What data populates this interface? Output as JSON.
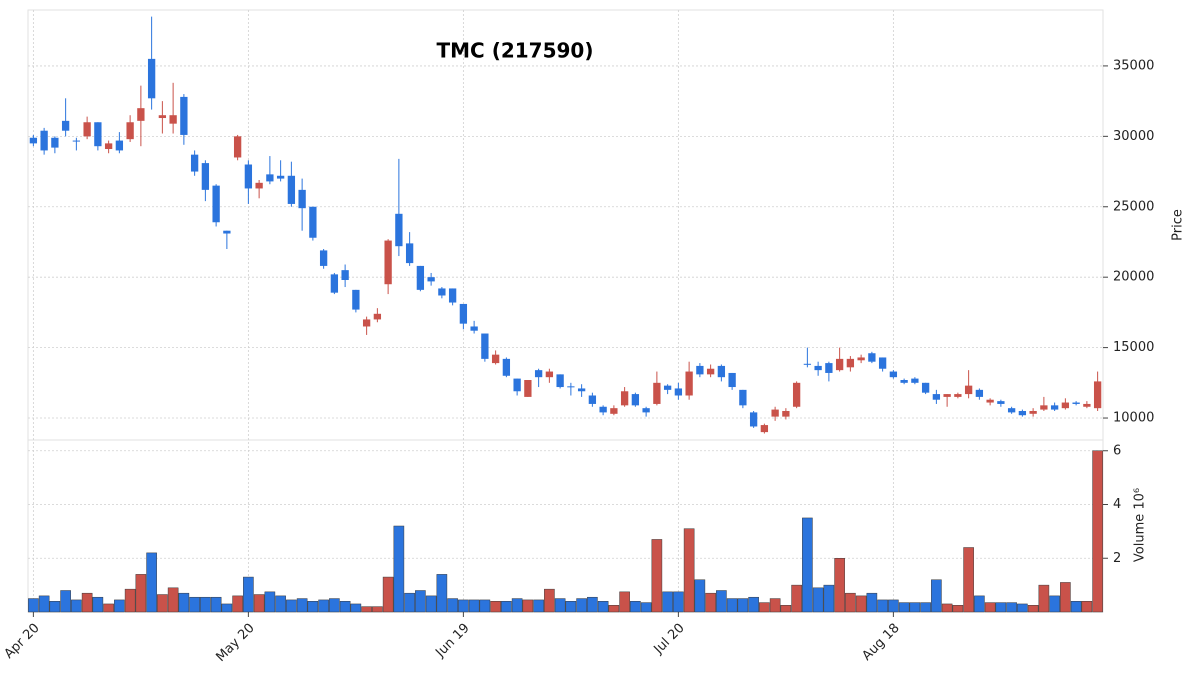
{
  "chart_data": {
    "type": "candlestick",
    "title": "TMC (217590)",
    "ylabel": "Price",
    "volume_label": "Volume  10⁶",
    "up_color": "#c9524a",
    "down_color": "#2b74dd",
    "grid": true,
    "ylim": [
      8440,
      38970
    ],
    "yticks": [
      10000,
      15000,
      20000,
      25000,
      30000,
      35000
    ],
    "volume_ylim": [
      0,
      6.4
    ],
    "volume_yticks": [
      2,
      4,
      6
    ],
    "categories": [
      "Apr 20",
      null,
      null,
      null,
      null,
      null,
      null,
      null,
      null,
      null,
      null,
      null,
      null,
      null,
      null,
      null,
      null,
      null,
      null,
      null,
      "May 20",
      null,
      null,
      null,
      null,
      null,
      null,
      null,
      null,
      null,
      null,
      null,
      null,
      null,
      null,
      null,
      null,
      null,
      null,
      null,
      "Jun 19",
      null,
      null,
      null,
      null,
      null,
      null,
      null,
      null,
      null,
      null,
      null,
      null,
      null,
      null,
      null,
      null,
      null,
      null,
      null,
      "Jul 20",
      null,
      null,
      null,
      null,
      null,
      null,
      null,
      null,
      null,
      null,
      null,
      null,
      null,
      null,
      null,
      null,
      null,
      null,
      null,
      "Aug 18",
      null,
      null,
      null,
      null,
      null,
      null,
      null,
      null,
      null,
      null,
      null,
      null,
      null,
      null,
      null,
      null,
      null,
      null,
      null
    ],
    "open": [
      29900,
      30400,
      29900,
      31100,
      29700,
      30000,
      31000,
      29100,
      29700,
      29800,
      31100,
      35500,
      31300,
      30900,
      32800,
      28700,
      28100,
      26500,
      23300,
      28500,
      28000,
      26300,
      27300,
      27200,
      27200,
      26200,
      25000,
      21900,
      20200,
      20500,
      19100,
      16500,
      17000,
      19500,
      24500,
      22400,
      20800,
      20000,
      19200,
      19200,
      18100,
      16500,
      16000,
      13900,
      14200,
      12800,
      11500,
      13400,
      12900,
      13100,
      12250,
      12100,
      11600,
      10800,
      10300,
      10900,
      11700,
      10700,
      11000,
      12300,
      12100,
      11600,
      13700,
      13100,
      13700,
      13200,
      12000,
      10400,
      9000,
      10100,
      10100,
      10800,
      13850,
      13700,
      13900,
      13400,
      13600,
      14100,
      14600,
      14300,
      13300,
      12700,
      12800,
      12500,
      11700,
      11500,
      11500,
      11700,
      12000,
      11100,
      11200,
      10700,
      10500,
      10300,
      10600,
      10900,
      10700,
      11100,
      10800,
      10700
    ],
    "high": [
      30100,
      30600,
      30000,
      32700,
      29900,
      31400,
      31000,
      29700,
      30300,
      31500,
      33600,
      38500,
      32500,
      33800,
      33000,
      29000,
      28300,
      26600,
      23300,
      30100,
      28300,
      26900,
      28600,
      28300,
      28200,
      27000,
      25000,
      22000,
      20300,
      20900,
      19100,
      17200,
      17800,
      22700,
      28400,
      23200,
      20800,
      20300,
      19300,
      19200,
      18100,
      16900,
      16000,
      14800,
      14300,
      12800,
      12700,
      13500,
      13500,
      13100,
      12500,
      12400,
      11800,
      10900,
      10900,
      12200,
      11800,
      10800,
      13300,
      12400,
      12500,
      14000,
      13900,
      13800,
      13800,
      13200,
      12000,
      10500,
      9600,
      10800,
      10700,
      12600,
      15000,
      14000,
      14000,
      15000,
      14400,
      14500,
      14700,
      14300,
      13400,
      12800,
      12900,
      12500,
      12000,
      11700,
      11800,
      13400,
      12100,
      11400,
      11300,
      10800,
      10600,
      10700,
      11500,
      11100,
      11400,
      11200,
      11200,
      13300
    ],
    "low": [
      29300,
      28700,
      28800,
      30000,
      29000,
      29800,
      29000,
      28800,
      28800,
      29600,
      29300,
      31900,
      30200,
      30200,
      29400,
      27200,
      25400,
      23600,
      22000,
      28300,
      25200,
      25600,
      26600,
      26800,
      25000,
      23300,
      22600,
      20600,
      18800,
      19300,
      17500,
      15900,
      16800,
      18800,
      21500,
      20800,
      19000,
      19400,
      18500,
      18000,
      16300,
      16000,
      14000,
      13800,
      12900,
      11600,
      11500,
      12200,
      12500,
      12100,
      11600,
      11500,
      10800,
      10200,
      10200,
      10800,
      10800,
      10100,
      10900,
      11700,
      11300,
      11300,
      12900,
      12900,
      12600,
      12000,
      10700,
      9300,
      8900,
      9800,
      9900,
      10700,
      13600,
      13000,
      12600,
      13300,
      13300,
      13900,
      13900,
      13300,
      12800,
      12400,
      12400,
      11700,
      11000,
      10800,
      11400,
      11400,
      11300,
      10900,
      10800,
      10300,
      10100,
      10100,
      10500,
      10500,
      10600,
      10900,
      10700,
      10500
    ],
    "close": [
      29500,
      29000,
      29200,
      30400,
      29650,
      31000,
      29300,
      29500,
      29000,
      31000,
      32000,
      32700,
      31500,
      31500,
      30100,
      27500,
      26200,
      23900,
      23100,
      30000,
      26300,
      26700,
      26800,
      27000,
      25200,
      24900,
      22800,
      20800,
      18900,
      19800,
      17700,
      17000,
      17400,
      22600,
      22200,
      21000,
      19100,
      19700,
      18700,
      18200,
      16700,
      16200,
      14200,
      14500,
      13000,
      11900,
      12700,
      12900,
      13300,
      12200,
      12200,
      11900,
      11000,
      10400,
      10700,
      11900,
      10900,
      10400,
      12500,
      12000,
      11600,
      13300,
      13100,
      13500,
      12900,
      12200,
      10900,
      9400,
      9500,
      10600,
      10500,
      12500,
      13800,
      13400,
      13200,
      14200,
      14200,
      14300,
      14000,
      13500,
      12900,
      12500,
      12500,
      11800,
      11300,
      11700,
      11700,
      12300,
      11500,
      11300,
      11000,
      10400,
      10200,
      10500,
      10900,
      10600,
      11100,
      11000,
      11000,
      12600
    ],
    "volume": [
      0.5,
      0.6,
      0.4,
      0.8,
      0.45,
      0.7,
      0.55,
      0.3,
      0.45,
      0.85,
      1.4,
      2.2,
      0.65,
      0.9,
      0.7,
      0.55,
      0.55,
      0.55,
      0.3,
      0.6,
      1.3,
      0.65,
      0.75,
      0.6,
      0.45,
      0.5,
      0.4,
      0.45,
      0.5,
      0.4,
      0.3,
      0.2,
      0.2,
      1.3,
      3.2,
      0.7,
      0.8,
      0.6,
      1.4,
      0.5,
      0.45,
      0.45,
      0.45,
      0.4,
      0.4,
      0.5,
      0.45,
      0.45,
      0.85,
      0.5,
      0.4,
      0.5,
      0.55,
      0.4,
      0.25,
      0.75,
      0.4,
      0.35,
      2.7,
      0.75,
      0.75,
      3.1,
      1.2,
      0.7,
      0.8,
      0.5,
      0.5,
      0.55,
      0.35,
      0.5,
      0.25,
      1.0,
      3.5,
      0.9,
      1.0,
      2.0,
      0.7,
      0.6,
      0.7,
      0.45,
      0.45,
      0.35,
      0.35,
      0.35,
      1.2,
      0.3,
      0.25,
      2.4,
      0.6,
      0.35,
      0.35,
      0.35,
      0.3,
      0.25,
      1.0,
      0.6,
      1.1,
      0.4,
      0.4,
      6.0
    ]
  }
}
